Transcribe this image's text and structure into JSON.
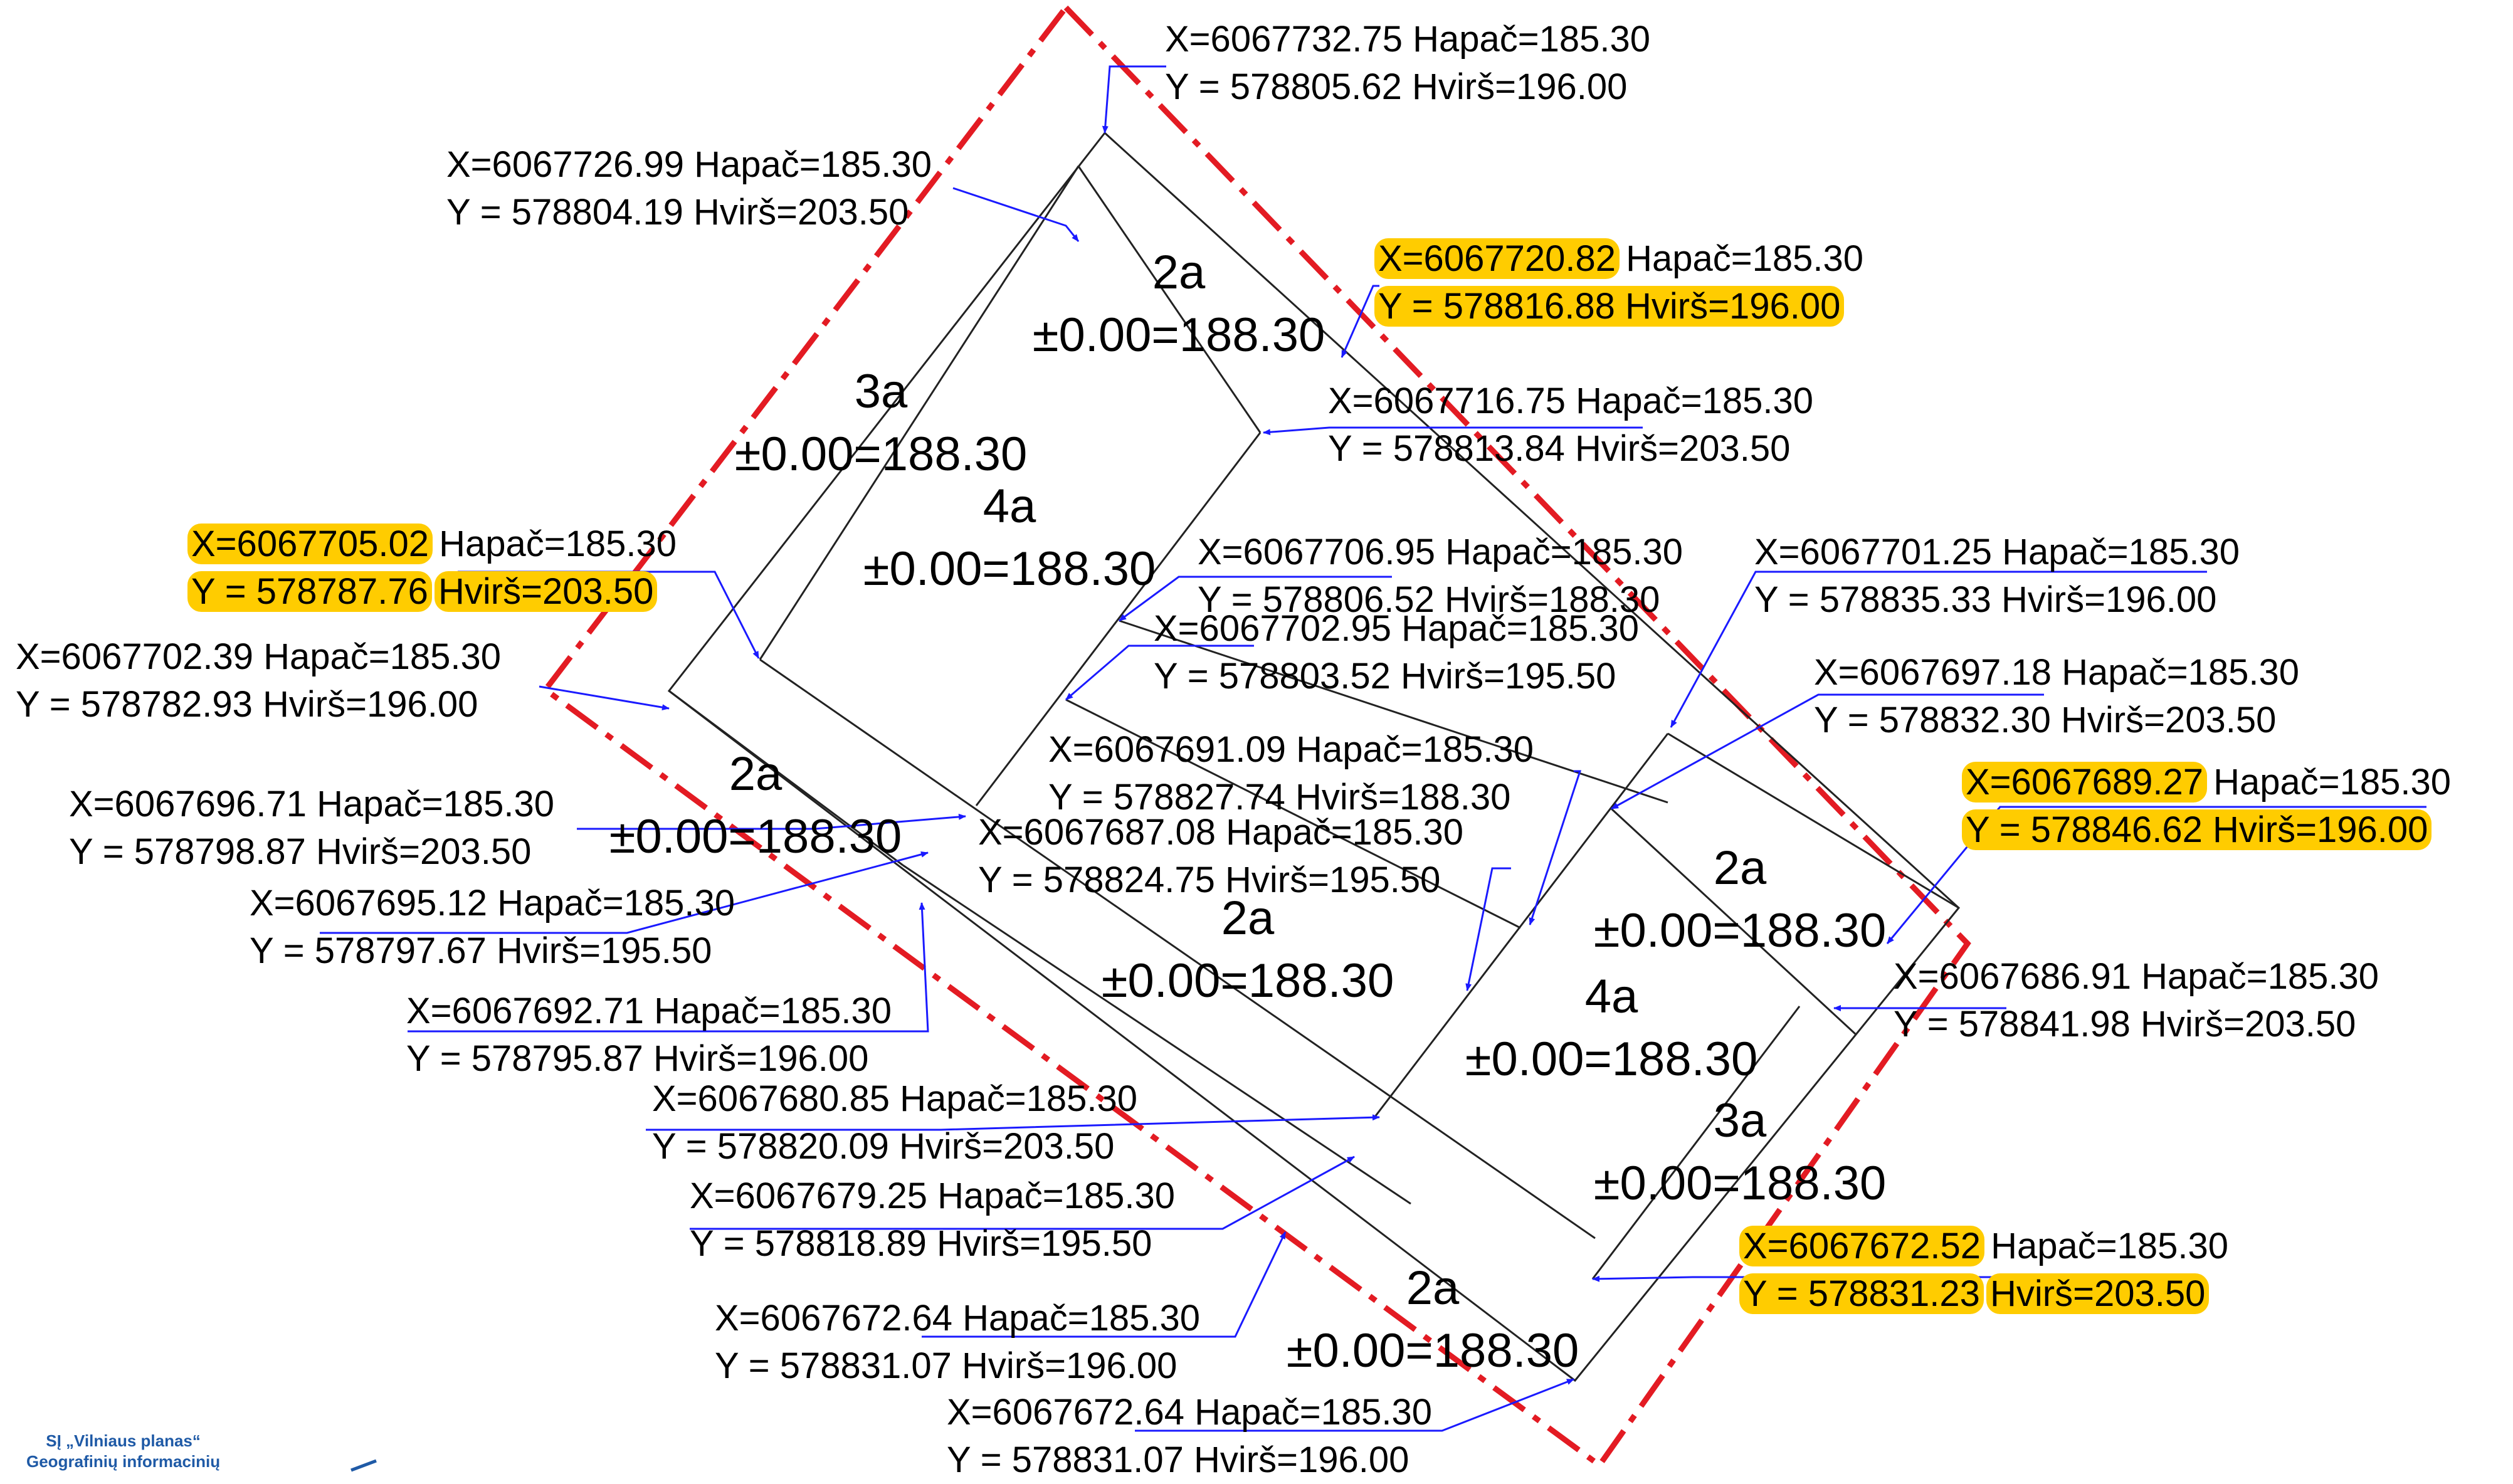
{
  "colors": {
    "boundary": "#e31b23",
    "leader": "#1a1aff",
    "highlight": "#ffcc00",
    "line": "#222222",
    "text": "#000000",
    "footer": "#1f5aa6"
  },
  "zones": [
    {
      "name": "2a",
      "level": "±0.00=188.30"
    },
    {
      "name": "3a",
      "level": "±0.00=188.30"
    },
    {
      "name": "4a",
      "level": "±0.00=188.30"
    },
    {
      "name": "2a",
      "level": "±0.00=188.30"
    },
    {
      "name": "2a",
      "level": "±0.00=188.30"
    },
    {
      "name": "2a",
      "level": "±0.00=188.30"
    },
    {
      "name": "4a",
      "level": "±0.00=188.30"
    },
    {
      "name": "3a",
      "level": "±0.00=188.30"
    },
    {
      "name": "2a",
      "level": "±0.00=188.30"
    }
  ],
  "points": [
    {
      "x": "X=6067732.75",
      "hbot": "Hapač=185.30",
      "y": "Y = 578805.62",
      "htop": "Hvirš=196.00"
    },
    {
      "x": "X=6067726.99",
      "hbot": "Hapač=185.30",
      "y": "Y = 578804.19",
      "htop": "Hvirš=203.50"
    },
    {
      "x": "X=6067720.82",
      "hbot": "Hapač=185.30",
      "y": "Y = 578816.88",
      "htop": "Hvirš=196.00"
    },
    {
      "x": "X=6067716.75",
      "hbot": "Hapač=185.30",
      "y": "Y = 578813.84",
      "htop": "Hvirš=203.50"
    },
    {
      "x": "X=6067705.02",
      "hbot": "Hapač=185.30",
      "y": "Y = 578787.76",
      "htop": "Hvirš=203.50"
    },
    {
      "x": "X=6067706.95",
      "hbot": "Hapač=185.30",
      "y": "Y = 578806.52",
      "htop": "Hvirš=188.30"
    },
    {
      "x": "X=6067701.25",
      "hbot": "Hapač=185.30",
      "y": "Y = 578835.33",
      "htop": "Hvirš=196.00"
    },
    {
      "x": "X=6067702.95",
      "hbot": "Hapač=185.30",
      "y": "Y = 578803.52",
      "htop": "Hvirš=195.50"
    },
    {
      "x": "X=6067702.39",
      "hbot": "Hapač=185.30",
      "y": "Y = 578782.93",
      "htop": "Hvirš=196.00"
    },
    {
      "x": "X=6067697.18",
      "hbot": "Hapač=185.30",
      "y": "Y = 578832.30",
      "htop": "Hvirš=203.50"
    },
    {
      "x": "X=6067691.09",
      "hbot": "Hapač=185.30",
      "y": "Y = 578827.74",
      "htop": "Hvirš=188.30"
    },
    {
      "x": "X=6067689.27",
      "hbot": "Hapač=185.30",
      "y": "Y = 578846.62",
      "htop": "Hvirš=196.00"
    },
    {
      "x": "X=6067696.71",
      "hbot": "Hapač=185.30",
      "y": "Y = 578798.87",
      "htop": "Hvirš=203.50"
    },
    {
      "x": "X=6067687.08",
      "hbot": "Hapač=185.30",
      "y": "Y = 578824.75",
      "htop": "Hvirš=195.50"
    },
    {
      "x": "X=6067695.12",
      "hbot": "Hapač=185.30",
      "y": "Y = 578797.67",
      "htop": "Hvirš=195.50"
    },
    {
      "x": "X=6067686.91",
      "hbot": "Hapač=185.30",
      "y": "Y = 578841.98",
      "htop": "Hvirš=203.50"
    },
    {
      "x": "X=6067692.71",
      "hbot": "Hapač=185.30",
      "y": "Y = 578795.87",
      "htop": "Hvirš=196.00"
    },
    {
      "x": "X=6067680.85",
      "hbot": "Hapač=185.30",
      "y": "Y = 578820.09",
      "htop": "Hvirš=203.50"
    },
    {
      "x": "X=6067679.25",
      "hbot": "Hapač=185.30",
      "y": "Y = 578818.89",
      "htop": "Hvirš=195.50"
    },
    {
      "x": "X=6067672.52",
      "hbot": "Hapač=185.30",
      "y": "Y = 578831.23",
      "htop": "Hvirš=203.50"
    },
    {
      "x": "X=6067672.64",
      "hbot": "Hapač=185.30",
      "y": "Y = 578831.07",
      "htop": "Hvirš=196.00"
    },
    {
      "x": "X=6067672.64",
      "hbot": "Hapač=185.30",
      "y": "Y = 578831.07",
      "htop": "Hvirš=196.00"
    }
  ],
  "footer": {
    "line1": "SĮ „Vilniaus planas“",
    "line2": "Geografinių informacinių"
  }
}
